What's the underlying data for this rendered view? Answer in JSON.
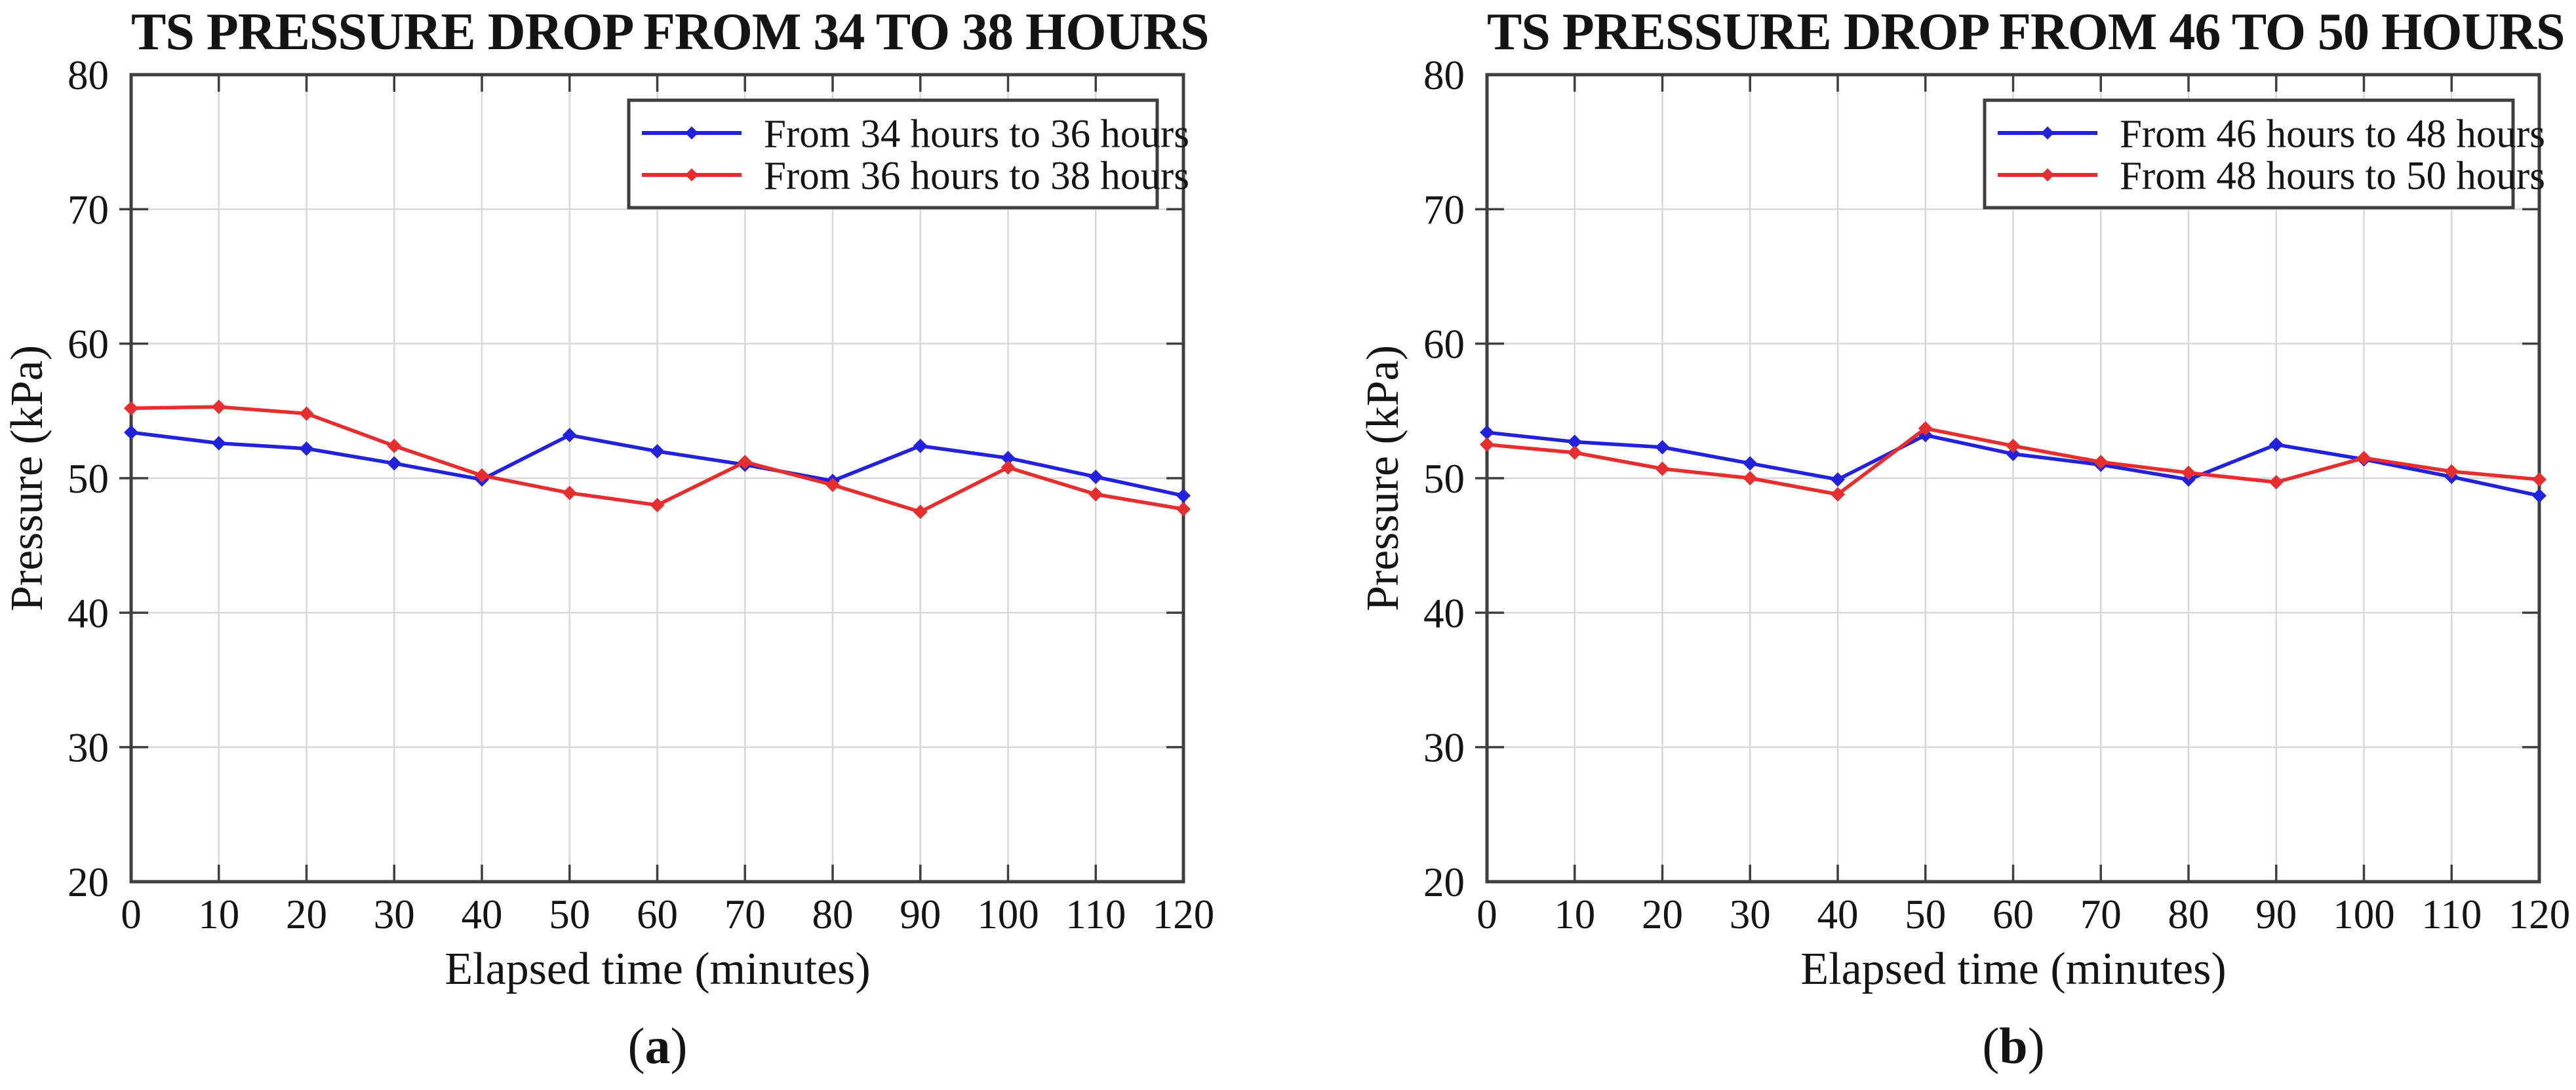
{
  "figure": {
    "colors": {
      "blue_series": "#2222dd",
      "red_series": "#e62e2e",
      "grid": "#d8d8d8",
      "spine": "#3f3f3f",
      "text": "#141414",
      "background": "#ffffff"
    },
    "panels": [
      {
        "title": "TS PRESSURE DROP FROM 34 TO 38 HOURS",
        "xlabel": "Elapsed time (minutes)",
        "ylabel": "Pressure (kPa)",
        "caption": {
          "open": "(",
          "letter": "a",
          "close": ")"
        },
        "chart_data": {
          "type": "line",
          "x": [
            0,
            10,
            20,
            30,
            40,
            50,
            60,
            70,
            80,
            90,
            100,
            110,
            120
          ],
          "series": [
            {
              "name": "From 34 hours to 36 hours",
              "color": "#2222dd",
              "values": [
                53.4,
                52.6,
                52.2,
                51.1,
                49.9,
                53.2,
                52.0,
                51.0,
                49.8,
                52.4,
                51.5,
                50.1,
                48.7
              ]
            },
            {
              "name": "From 36 hours to 38 hours",
              "color": "#e62e2e",
              "values": [
                55.2,
                55.3,
                54.8,
                52.4,
                50.2,
                48.9,
                48.0,
                51.2,
                49.5,
                47.5,
                50.8,
                48.8,
                47.7
              ]
            }
          ],
          "xlim": [
            0,
            120
          ],
          "ylim": [
            20,
            80
          ],
          "xticks": [
            0,
            10,
            20,
            30,
            40,
            50,
            60,
            70,
            80,
            90,
            100,
            110,
            120
          ],
          "yticks": [
            20,
            30,
            40,
            50,
            60,
            70,
            80
          ],
          "grid": true,
          "legend_position": "top-right"
        }
      },
      {
        "title": "TS PRESSURE DROP FROM 46 TO 50 HOURS",
        "xlabel": "Elapsed time (minutes)",
        "ylabel": "Pressure (kPa)",
        "caption": {
          "open": "(",
          "letter": "b",
          "close": ")"
        },
        "chart_data": {
          "type": "line",
          "x": [
            0,
            10,
            20,
            30,
            40,
            50,
            60,
            70,
            80,
            90,
            100,
            110,
            120
          ],
          "series": [
            {
              "name": "From 46 hours to 48 hours",
              "color": "#2222dd",
              "values": [
                53.4,
                52.7,
                52.3,
                51.1,
                49.9,
                53.2,
                51.8,
                51.0,
                49.9,
                52.5,
                51.4,
                50.1,
                48.7
              ]
            },
            {
              "name": "From 48 hours to 50 hours",
              "color": "#e62e2e",
              "values": [
                52.5,
                51.9,
                50.7,
                50.0,
                48.8,
                53.7,
                52.4,
                51.2,
                50.4,
                49.7,
                51.5,
                50.5,
                49.9
              ]
            }
          ],
          "xlim": [
            0,
            120
          ],
          "ylim": [
            20,
            80
          ],
          "xticks": [
            0,
            10,
            20,
            30,
            40,
            50,
            60,
            70,
            80,
            90,
            100,
            110,
            120
          ],
          "yticks": [
            20,
            30,
            40,
            50,
            60,
            70,
            80
          ],
          "grid": true,
          "legend_position": "top-right"
        }
      }
    ]
  }
}
